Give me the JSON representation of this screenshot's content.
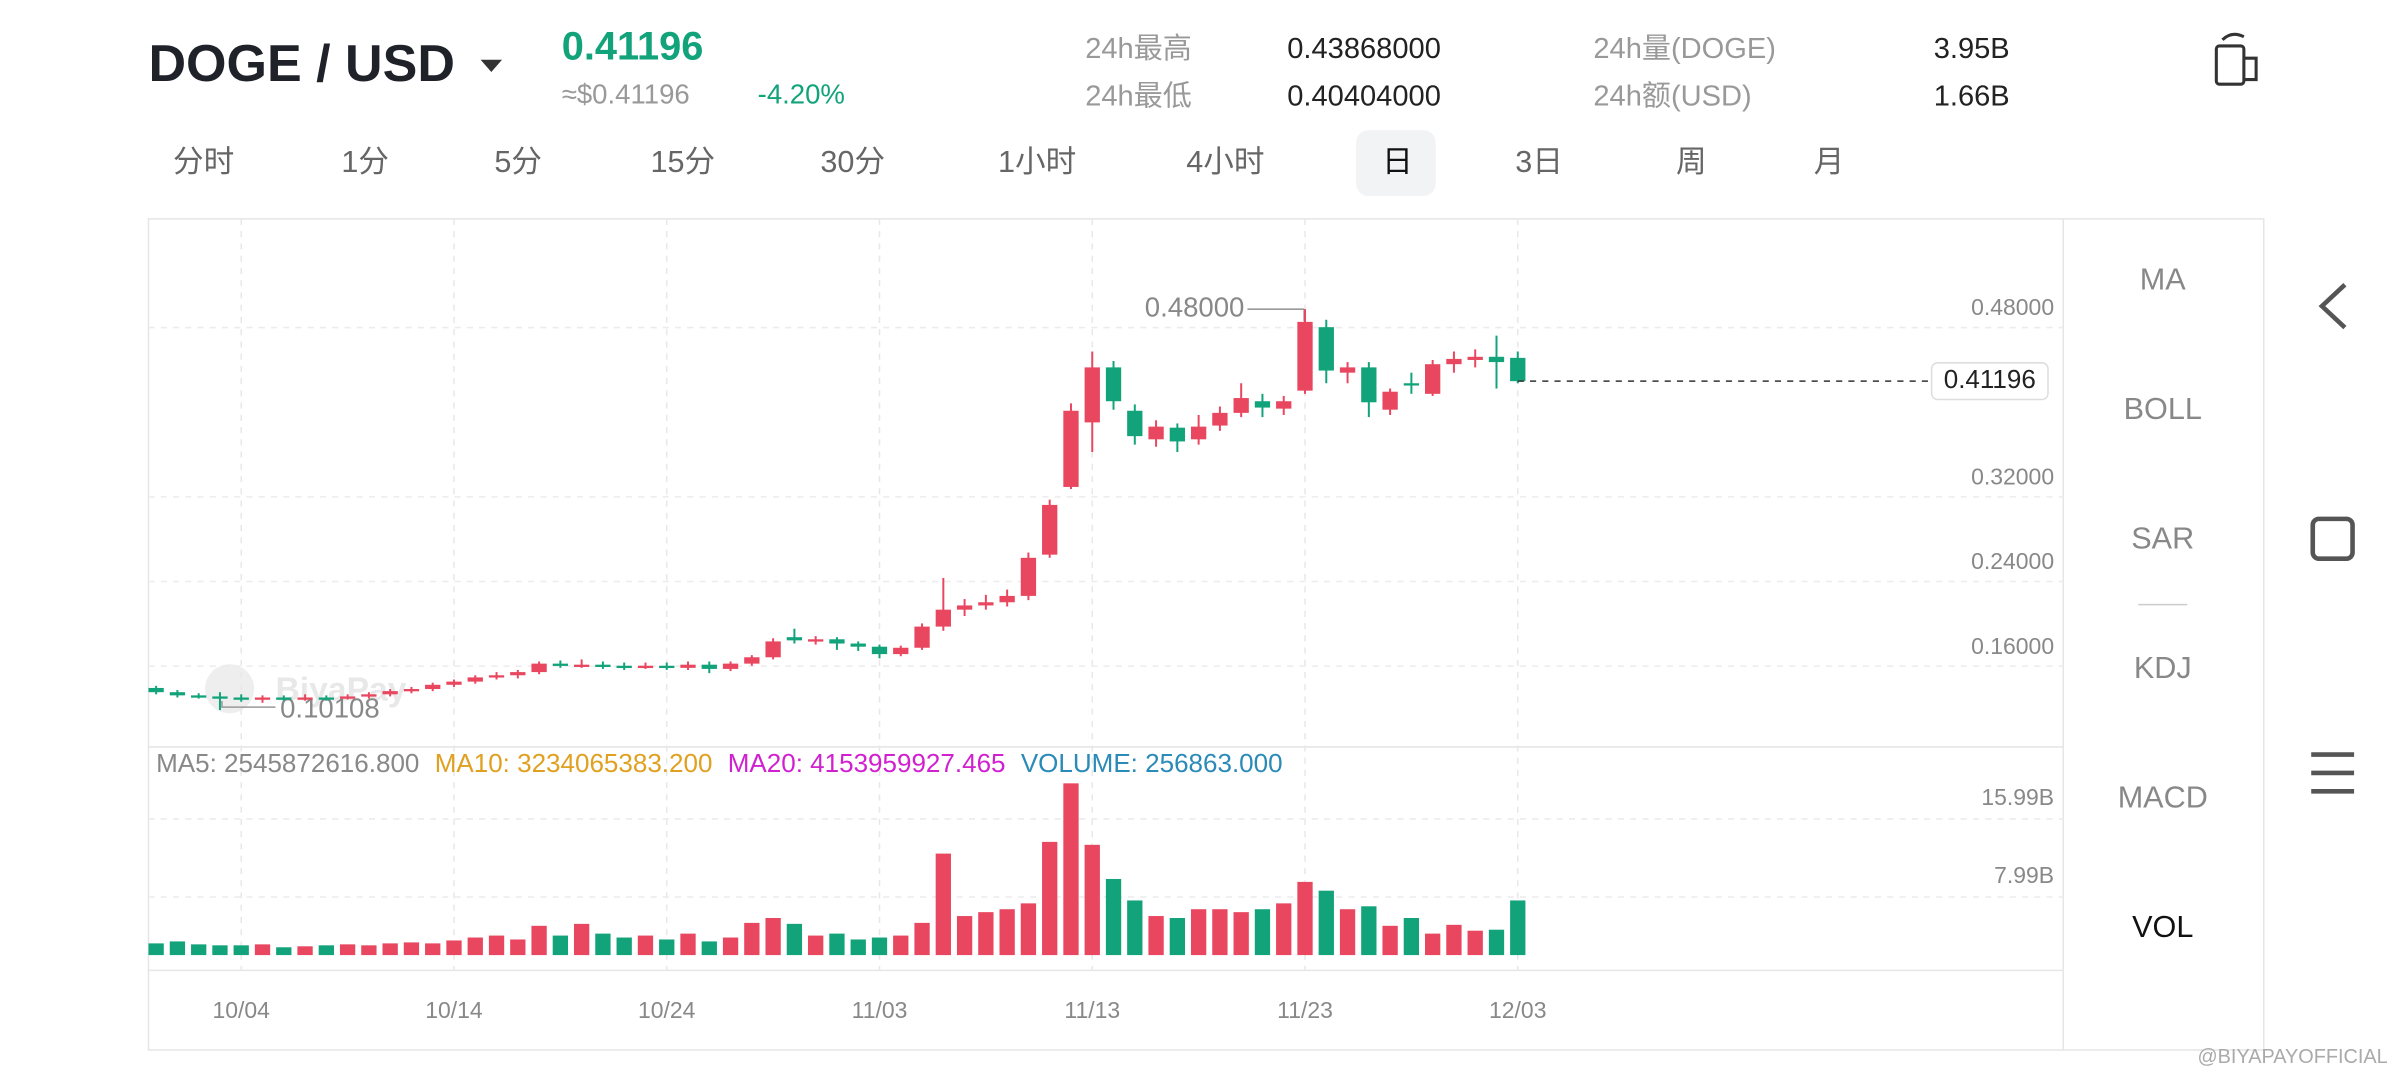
{
  "header": {
    "pair": "DOGE / USD",
    "price": "0.41196",
    "price_usd": "≈$0.41196",
    "change": "-4.20%",
    "stats": [
      {
        "label": "24h最高",
        "value": "0.43868000"
      },
      {
        "label": "24h最低",
        "value": "0.40404000"
      },
      {
        "label": "24h量(DOGE)",
        "value": "3.95B"
      },
      {
        "label": "24h额(USD)",
        "value": "1.66B"
      }
    ]
  },
  "tabs": [
    "分时",
    "1分",
    "5分",
    "15分",
    "30分",
    "1小时",
    "4小时",
    "日",
    "3日",
    "周",
    "月"
  ],
  "indicators": [
    "MA",
    "BOLL",
    "SAR",
    "KDJ",
    "MACD",
    "VOL"
  ],
  "watermark": "BiyaPay",
  "footer_handle": "@BIYAPAYOFFICIAL",
  "chart_data": {
    "type": "candlestick",
    "up_color": "#e8475f",
    "down_color": "#13a37a",
    "xlim": [
      -0.36,
      89.64
    ],
    "xticks": [
      {
        "value": 4,
        "label": "10/04"
      },
      {
        "value": 14,
        "label": "10/14"
      },
      {
        "value": 24,
        "label": "10/24"
      },
      {
        "value": 34,
        "label": "11/03"
      },
      {
        "value": 44,
        "label": "11/13"
      },
      {
        "value": 54,
        "label": "11/23"
      },
      {
        "value": 64,
        "label": "12/03"
      }
    ],
    "ylim": [
      0.06626,
      0.56535
    ],
    "yticks": [
      {
        "value": 0.16,
        "label": "0.16000"
      },
      {
        "value": 0.24,
        "label": "0.24000"
      },
      {
        "value": 0.32,
        "label": "0.32000"
      },
      {
        "value": 0.48,
        "label": "0.48000"
      }
    ],
    "last_price": {
      "value": 0.41196,
      "label": "0.41196"
    },
    "high_label": "0.48000",
    "low_label": "0.10108",
    "open": [
      0.122,
      0.118,
      0.115,
      0.114,
      0.113,
      0.111,
      0.113,
      0.112,
      0.113,
      0.112,
      0.114,
      0.116,
      0.119,
      0.121,
      0.125,
      0.128,
      0.132,
      0.134,
      0.137,
      0.145,
      0.143,
      0.144,
      0.143,
      0.142,
      0.143,
      0.141,
      0.144,
      0.14,
      0.145,
      0.151,
      0.17,
      0.167,
      0.168,
      0.164,
      0.161,
      0.154,
      0.16,
      0.18,
      0.196,
      0.2,
      0.203,
      0.209,
      0.248,
      0.312,
      0.373,
      0.425,
      0.384,
      0.357,
      0.368,
      0.357,
      0.37,
      0.382,
      0.393,
      0.386,
      0.403,
      0.463,
      0.42,
      0.425,
      0.385,
      0.41,
      0.4,
      0.428,
      0.432,
      0.435,
      0.434
    ],
    "high": [
      0.124,
      0.12,
      0.117,
      0.118,
      0.116,
      0.115,
      0.115,
      0.116,
      0.115,
      0.116,
      0.118,
      0.121,
      0.123,
      0.127,
      0.13,
      0.134,
      0.137,
      0.139,
      0.147,
      0.148,
      0.149,
      0.147,
      0.146,
      0.146,
      0.146,
      0.147,
      0.147,
      0.147,
      0.153,
      0.169,
      0.178,
      0.171,
      0.17,
      0.166,
      0.163,
      0.162,
      0.183,
      0.226,
      0.206,
      0.21,
      0.215,
      0.25,
      0.3,
      0.391,
      0.44,
      0.431,
      0.39,
      0.375,
      0.372,
      0.38,
      0.388,
      0.41,
      0.4,
      0.398,
      0.48,
      0.47,
      0.43,
      0.43,
      0.405,
      0.42,
      0.432,
      0.44,
      0.442,
      0.455,
      0.44
    ],
    "low": [
      0.116,
      0.113,
      0.112,
      0.10108,
      0.109,
      0.108,
      0.11,
      0.11,
      0.11,
      0.111,
      0.112,
      0.114,
      0.117,
      0.119,
      0.123,
      0.126,
      0.13,
      0.131,
      0.135,
      0.141,
      0.141,
      0.14,
      0.139,
      0.14,
      0.139,
      0.139,
      0.136,
      0.138,
      0.143,
      0.149,
      0.164,
      0.163,
      0.158,
      0.157,
      0.15,
      0.152,
      0.158,
      0.176,
      0.19,
      0.196,
      0.199,
      0.205,
      0.245,
      0.31,
      0.345,
      0.385,
      0.352,
      0.35,
      0.345,
      0.352,
      0.365,
      0.378,
      0.378,
      0.38,
      0.4,
      0.41,
      0.41,
      0.378,
      0.38,
      0.4,
      0.398,
      0.42,
      0.425,
      0.405,
      0.41
    ],
    "close": [
      0.118,
      0.115,
      0.114,
      0.113,
      0.111,
      0.113,
      0.112,
      0.113,
      0.112,
      0.114,
      0.116,
      0.119,
      0.121,
      0.125,
      0.128,
      0.132,
      0.134,
      0.137,
      0.145,
      0.143,
      0.144,
      0.143,
      0.142,
      0.143,
      0.141,
      0.144,
      0.14,
      0.145,
      0.151,
      0.166,
      0.167,
      0.168,
      0.164,
      0.161,
      0.154,
      0.16,
      0.18,
      0.196,
      0.2,
      0.203,
      0.209,
      0.245,
      0.295,
      0.384,
      0.425,
      0.393,
      0.36,
      0.369,
      0.355,
      0.369,
      0.382,
      0.396,
      0.387,
      0.393,
      0.468,
      0.422,
      0.425,
      0.392,
      0.402,
      0.408,
      0.428,
      0.433,
      0.435,
      0.43,
      0.41196
    ],
    "volume": {
      "ylim": [
        -1.57,
        21.33
      ],
      "yticks": [
        {
          "value": 7.99,
          "label": "7.99B"
        },
        {
          "value": 15.99,
          "label": "15.99B"
        }
      ],
      "values": [
        1.2,
        1.4,
        1.1,
        1.0,
        1.0,
        1.1,
        0.8,
        0.9,
        1.0,
        1.1,
        1.0,
        1.2,
        1.3,
        1.2,
        1.5,
        1.8,
        2.0,
        1.6,
        3.0,
        2.0,
        3.2,
        2.2,
        1.8,
        2.0,
        1.6,
        2.2,
        1.4,
        1.8,
        3.3,
        3.8,
        3.2,
        2.0,
        2.2,
        1.6,
        1.8,
        2.0,
        3.3,
        10.4,
        4.0,
        4.4,
        4.7,
        5.3,
        11.6,
        17.6,
        11.3,
        7.8,
        5.6,
        4.0,
        3.8,
        4.7,
        4.7,
        4.4,
        4.7,
        5.3,
        7.5,
        6.6,
        4.7,
        5.0,
        3.0,
        3.8,
        2.2,
        3.1,
        2.5,
        2.6,
        5.6
      ],
      "legend": [
        {
          "text": "MA5: 2545872616.800",
          "color": "#888888"
        },
        {
          "text": "MA10: 3234065383.200",
          "color": "#e0a020"
        },
        {
          "text": "MA20: 4153959927.465",
          "color": "#d020d0"
        },
        {
          "text": "VOLUME: 256863.000",
          "color": "#2a8ab8"
        }
      ]
    }
  }
}
